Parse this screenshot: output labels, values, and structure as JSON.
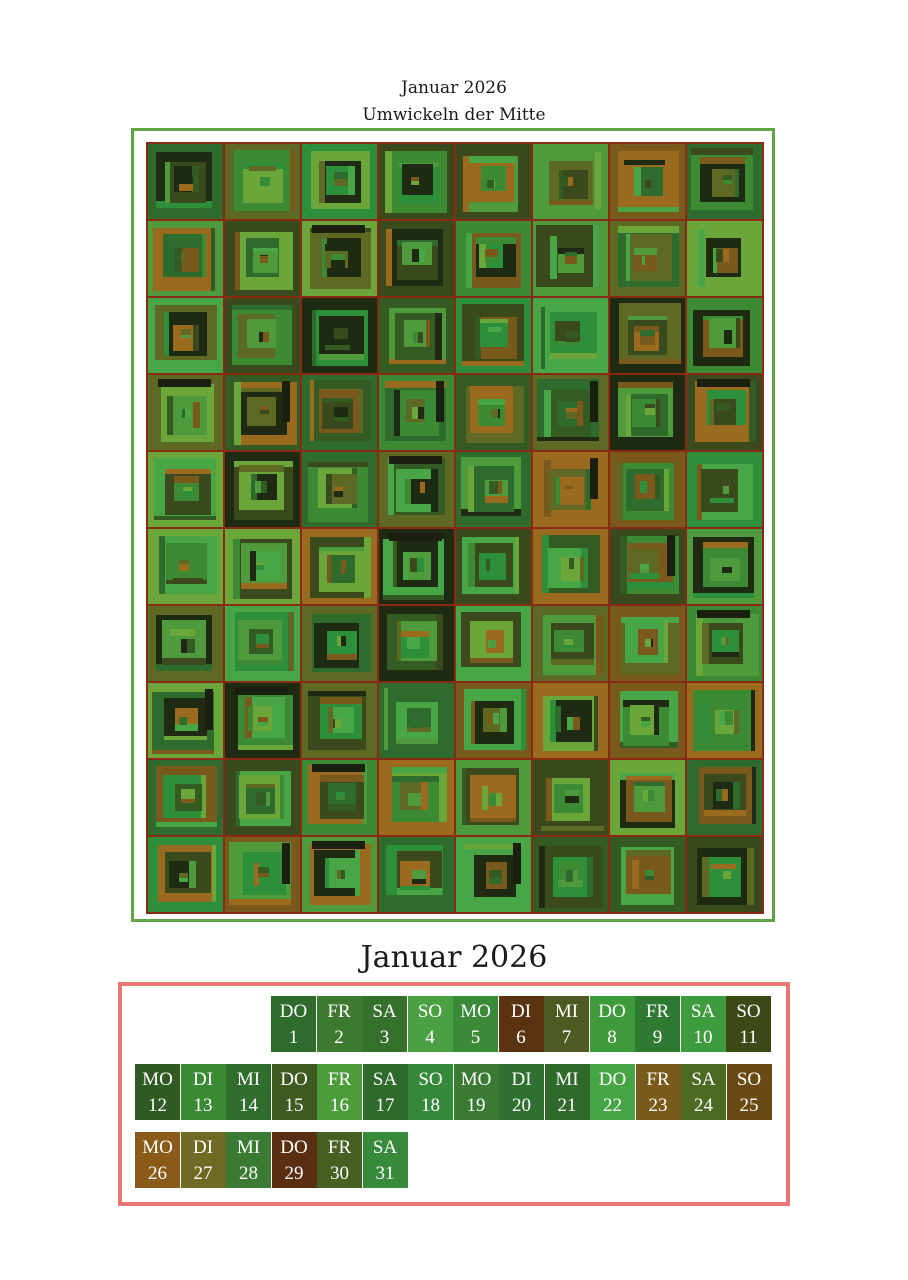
{
  "artwork": {
    "title_line1": "Januar 2026",
    "title_line2": "Umwickeln der Mitte",
    "grid_columns": 8,
    "grid_rows": 10,
    "frame_color": "#5fa447",
    "grout_color": "#8a2a14",
    "palette": [
      "#2f6b2c",
      "#3d8a35",
      "#4f9a3c",
      "#2e8f3a",
      "#5e6a24",
      "#7a5a1c",
      "#9a6a1f",
      "#3a4a1c",
      "#1e2a12",
      "#49a646",
      "#6aa63a",
      "#345c22"
    ]
  },
  "calendar": {
    "title": "Januar 2026",
    "frame_color": "#e87672",
    "rows": [
      [
        {
          "wd": "DO",
          "d": "1",
          "c": "#2f6b2c"
        },
        {
          "wd": "FR",
          "d": "2",
          "c": "#3d7a30"
        },
        {
          "wd": "SA",
          "d": "3",
          "c": "#36702d"
        },
        {
          "wd": "SO",
          "d": "4",
          "c": "#4aa043"
        },
        {
          "wd": "MO",
          "d": "5",
          "c": "#3b8a37"
        },
        {
          "wd": "DI",
          "d": "6",
          "c": "#5a3410"
        },
        {
          "wd": "MI",
          "d": "7",
          "c": "#4d5a22"
        },
        {
          "wd": "DO",
          "d": "8",
          "c": "#3f9a3c"
        },
        {
          "wd": "FR",
          "d": "9",
          "c": "#2e7a33"
        },
        {
          "wd": "SA",
          "d": "10",
          "c": "#3e9c3e"
        },
        {
          "wd": "SO",
          "d": "11",
          "c": "#3c4a18"
        }
      ],
      [
        {
          "wd": "MO",
          "d": "12",
          "c": "#2f5a22"
        },
        {
          "wd": "DI",
          "d": "13",
          "c": "#3a8a35"
        },
        {
          "wd": "MI",
          "d": "14",
          "c": "#2f6e2c"
        },
        {
          "wd": "DO",
          "d": "15",
          "c": "#3d5a20"
        },
        {
          "wd": "FR",
          "d": "16",
          "c": "#4c9c3c"
        },
        {
          "wd": "SA",
          "d": "17",
          "c": "#2e6b2a"
        },
        {
          "wd": "SO",
          "d": "18",
          "c": "#35893a"
        },
        {
          "wd": "MO",
          "d": "19",
          "c": "#3a7a32"
        },
        {
          "wd": "DI",
          "d": "20",
          "c": "#307030"
        },
        {
          "wd": "MI",
          "d": "21",
          "c": "#2f6a2b"
        },
        {
          "wd": "DO",
          "d": "22",
          "c": "#45a545"
        },
        {
          "wd": "FR",
          "d": "23",
          "c": "#7a5a18"
        },
        {
          "wd": "SA",
          "d": "24",
          "c": "#4d6a22"
        },
        {
          "wd": "SO",
          "d": "25",
          "c": "#6a4a12"
        }
      ],
      [
        {
          "wd": "MO",
          "d": "26",
          "c": "#8a5a18"
        },
        {
          "wd": "DI",
          "d": "27",
          "c": "#6e6a24"
        },
        {
          "wd": "MI",
          "d": "28",
          "c": "#3b7a32"
        },
        {
          "wd": "DO",
          "d": "29",
          "c": "#5a2e10"
        },
        {
          "wd": "FR",
          "d": "30",
          "c": "#466022"
        },
        {
          "wd": "SA",
          "d": "31",
          "c": "#368a3a"
        }
      ]
    ]
  }
}
